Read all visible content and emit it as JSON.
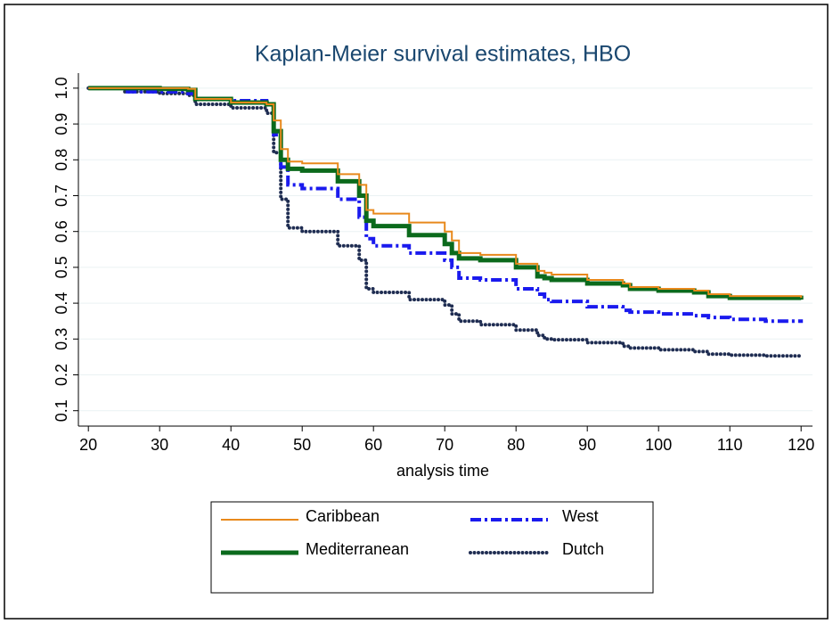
{
  "chart_data": {
    "type": "line",
    "step": true,
    "title": "Kaplan-Meier survival estimates, HBO",
    "x_label": "analysis time",
    "x": [
      20,
      25,
      30,
      34,
      35,
      40,
      45,
      46,
      47,
      48,
      50,
      55,
      58,
      59,
      60,
      65,
      70,
      71,
      72,
      75,
      80,
      83,
      84,
      85,
      90,
      95,
      96,
      100,
      105,
      107,
      110,
      115,
      120
    ],
    "series": [
      {
        "name": "Caribbean",
        "color": "#e8891c",
        "style": "solid",
        "width": 2,
        "values": [
          1.0,
          1.0,
          1.0,
          0.998,
          0.97,
          0.96,
          0.955,
          0.91,
          0.83,
          0.795,
          0.79,
          0.76,
          0.73,
          0.66,
          0.65,
          0.625,
          0.6,
          0.575,
          0.54,
          0.535,
          0.51,
          0.49,
          0.485,
          0.48,
          0.465,
          0.455,
          0.445,
          0.44,
          0.435,
          0.425,
          0.42,
          0.42,
          0.415
        ]
      },
      {
        "name": "Mediterranean",
        "color": "#0b6a1c",
        "style": "solid",
        "width": 5,
        "values": [
          1.0,
          1.0,
          0.998,
          0.995,
          0.97,
          0.96,
          0.955,
          0.88,
          0.8,
          0.775,
          0.77,
          0.74,
          0.7,
          0.63,
          0.615,
          0.59,
          0.565,
          0.54,
          0.525,
          0.52,
          0.5,
          0.475,
          0.47,
          0.465,
          0.455,
          0.45,
          0.44,
          0.435,
          0.43,
          0.42,
          0.415,
          0.415,
          0.41
        ]
      },
      {
        "name": "West",
        "color": "#1a1aee",
        "style": "dashdot",
        "width": 4,
        "values": [
          1.0,
          0.99,
          0.99,
          0.985,
          0.97,
          0.965,
          0.955,
          0.87,
          0.78,
          0.73,
          0.72,
          0.69,
          0.64,
          0.58,
          0.56,
          0.54,
          0.52,
          0.5,
          0.47,
          0.465,
          0.44,
          0.425,
          0.41,
          0.405,
          0.39,
          0.38,
          0.375,
          0.37,
          0.365,
          0.36,
          0.355,
          0.35,
          0.345
        ]
      },
      {
        "name": "Dutch",
        "color": "#1f2d52",
        "style": "dotted",
        "width": 4,
        "values": [
          1.0,
          0.99,
          0.985,
          0.98,
          0.955,
          0.945,
          0.93,
          0.82,
          0.69,
          0.61,
          0.6,
          0.56,
          0.52,
          0.44,
          0.43,
          0.41,
          0.395,
          0.37,
          0.35,
          0.34,
          0.325,
          0.31,
          0.3,
          0.298,
          0.29,
          0.28,
          0.275,
          0.27,
          0.265,
          0.258,
          0.255,
          0.253,
          0.25
        ]
      }
    ],
    "xlim": [
      18.6,
      121.6
    ],
    "ylim": [
      0.057,
      1.042
    ],
    "xticks": [
      20,
      30,
      40,
      50,
      60,
      70,
      80,
      90,
      100,
      110,
      120
    ],
    "yticks": [
      0.1,
      0.2,
      0.3,
      0.4,
      0.5,
      0.6,
      0.7,
      0.8,
      0.9,
      {
        "value": 1,
        "label": "1.0"
      }
    ],
    "grid": true
  }
}
